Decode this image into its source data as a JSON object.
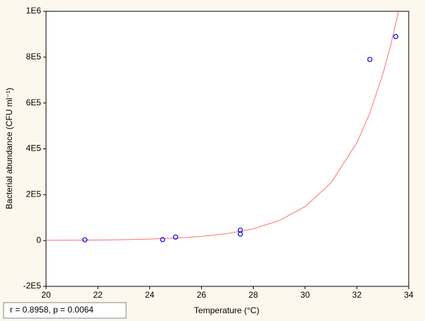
{
  "chart_data": {
    "type": "scatter",
    "x_label": "Temperature (°C)",
    "y_label": "Bacterial abundance (CFU ml⁻¹)",
    "annotation": "r = 0.8958, p = 0.0064",
    "xlim": [
      20,
      34
    ],
    "xticks": [
      20,
      22,
      24,
      26,
      28,
      30,
      32,
      34
    ],
    "ylim": [
      -200000,
      1000000
    ],
    "yticks": [
      {
        "value": -200000,
        "label": "-2E5"
      },
      0,
      {
        "value": 200000,
        "label": "2E5"
      },
      {
        "value": 400000,
        "label": "4E5"
      },
      {
        "value": 600000,
        "label": "6E5"
      },
      {
        "value": 800000,
        "label": "8E5"
      },
      {
        "value": 1000000,
        "label": "1E6"
      }
    ],
    "series": [
      {
        "mode": "markers",
        "color": "#0000ff",
        "x": [
          21.5,
          24.5,
          25,
          27.5,
          27.5,
          32.5,
          33.5
        ],
        "values": [
          3000,
          4000,
          15000,
          45000,
          28000,
          790000,
          890000
        ]
      },
      {
        "mode": "line",
        "color": "#ff7070",
        "x": [
          20,
          21,
          22,
          23,
          24,
          25,
          26,
          27,
          28,
          29,
          30,
          31,
          32,
          32.5,
          33,
          33.3,
          33.6
        ],
        "values": [
          738,
          1254,
          2131,
          3623,
          6153,
          10453,
          17756,
          30160,
          51240,
          87050,
          147900,
          251200,
          426700,
          556000,
          725000,
          850000,
          997000
        ]
      }
    ]
  }
}
